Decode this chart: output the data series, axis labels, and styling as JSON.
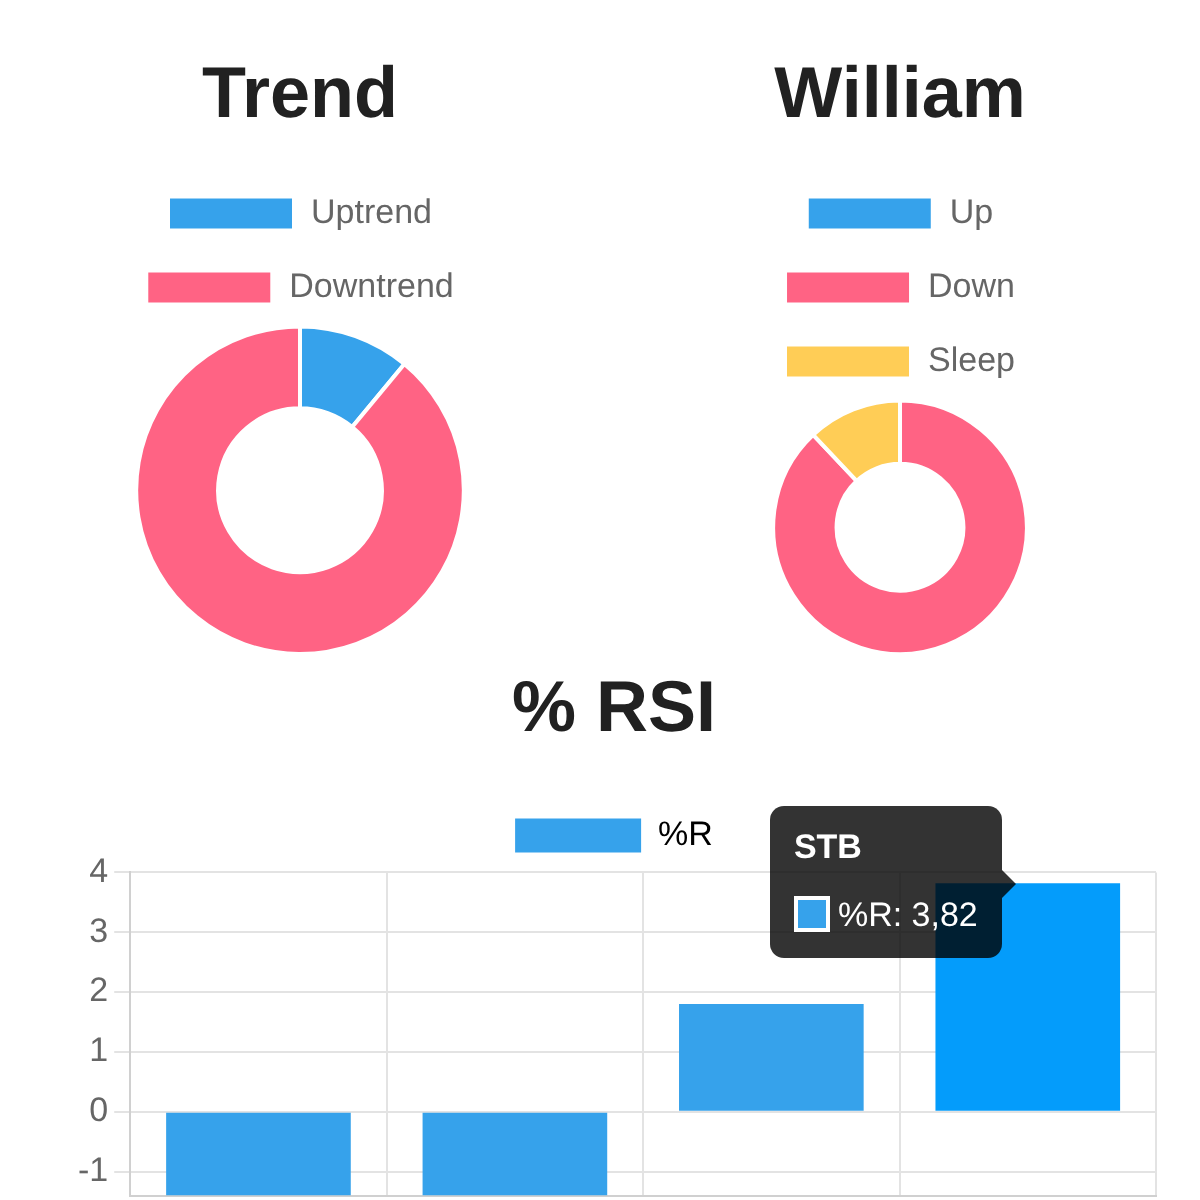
{
  "chart_data": [
    {
      "type": "donut",
      "title": "Trend",
      "categories": [
        "Uptrend",
        "Downtrend"
      ],
      "values": [
        11,
        89
      ],
      "colors": [
        "#36a2eb",
        "#ff6384"
      ],
      "legend": "top"
    },
    {
      "type": "donut",
      "title": "William",
      "categories": [
        "Up",
        "Down",
        "Sleep"
      ],
      "values": [
        0,
        88,
        12
      ],
      "colors": [
        "#36a2eb",
        "#ff6384",
        "#ffcd56"
      ],
      "legend": "top"
    },
    {
      "type": "bar",
      "title": "% RSI",
      "categories": [
        null,
        null,
        null,
        null
      ],
      "series": [
        {
          "name": "%R",
          "color": "#36a2eb",
          "colors": [
            "#36a2eb",
            "#36a2eb",
            "#36a2eb",
            "#049cfb"
          ],
          "values": [
            -1.4,
            -1.4,
            1.8,
            3.82
          ],
          "value_labels": [
            null,
            null,
            null,
            "%R: 3,82"
          ]
        }
      ],
      "annotations": [
        "STB"
      ],
      "ylim": [
        -1.4,
        4
      ],
      "yticks": [
        -1,
        0,
        1,
        2,
        3,
        4
      ],
      "grid": true,
      "legend": "top",
      "tick_labels": "y"
    }
  ]
}
